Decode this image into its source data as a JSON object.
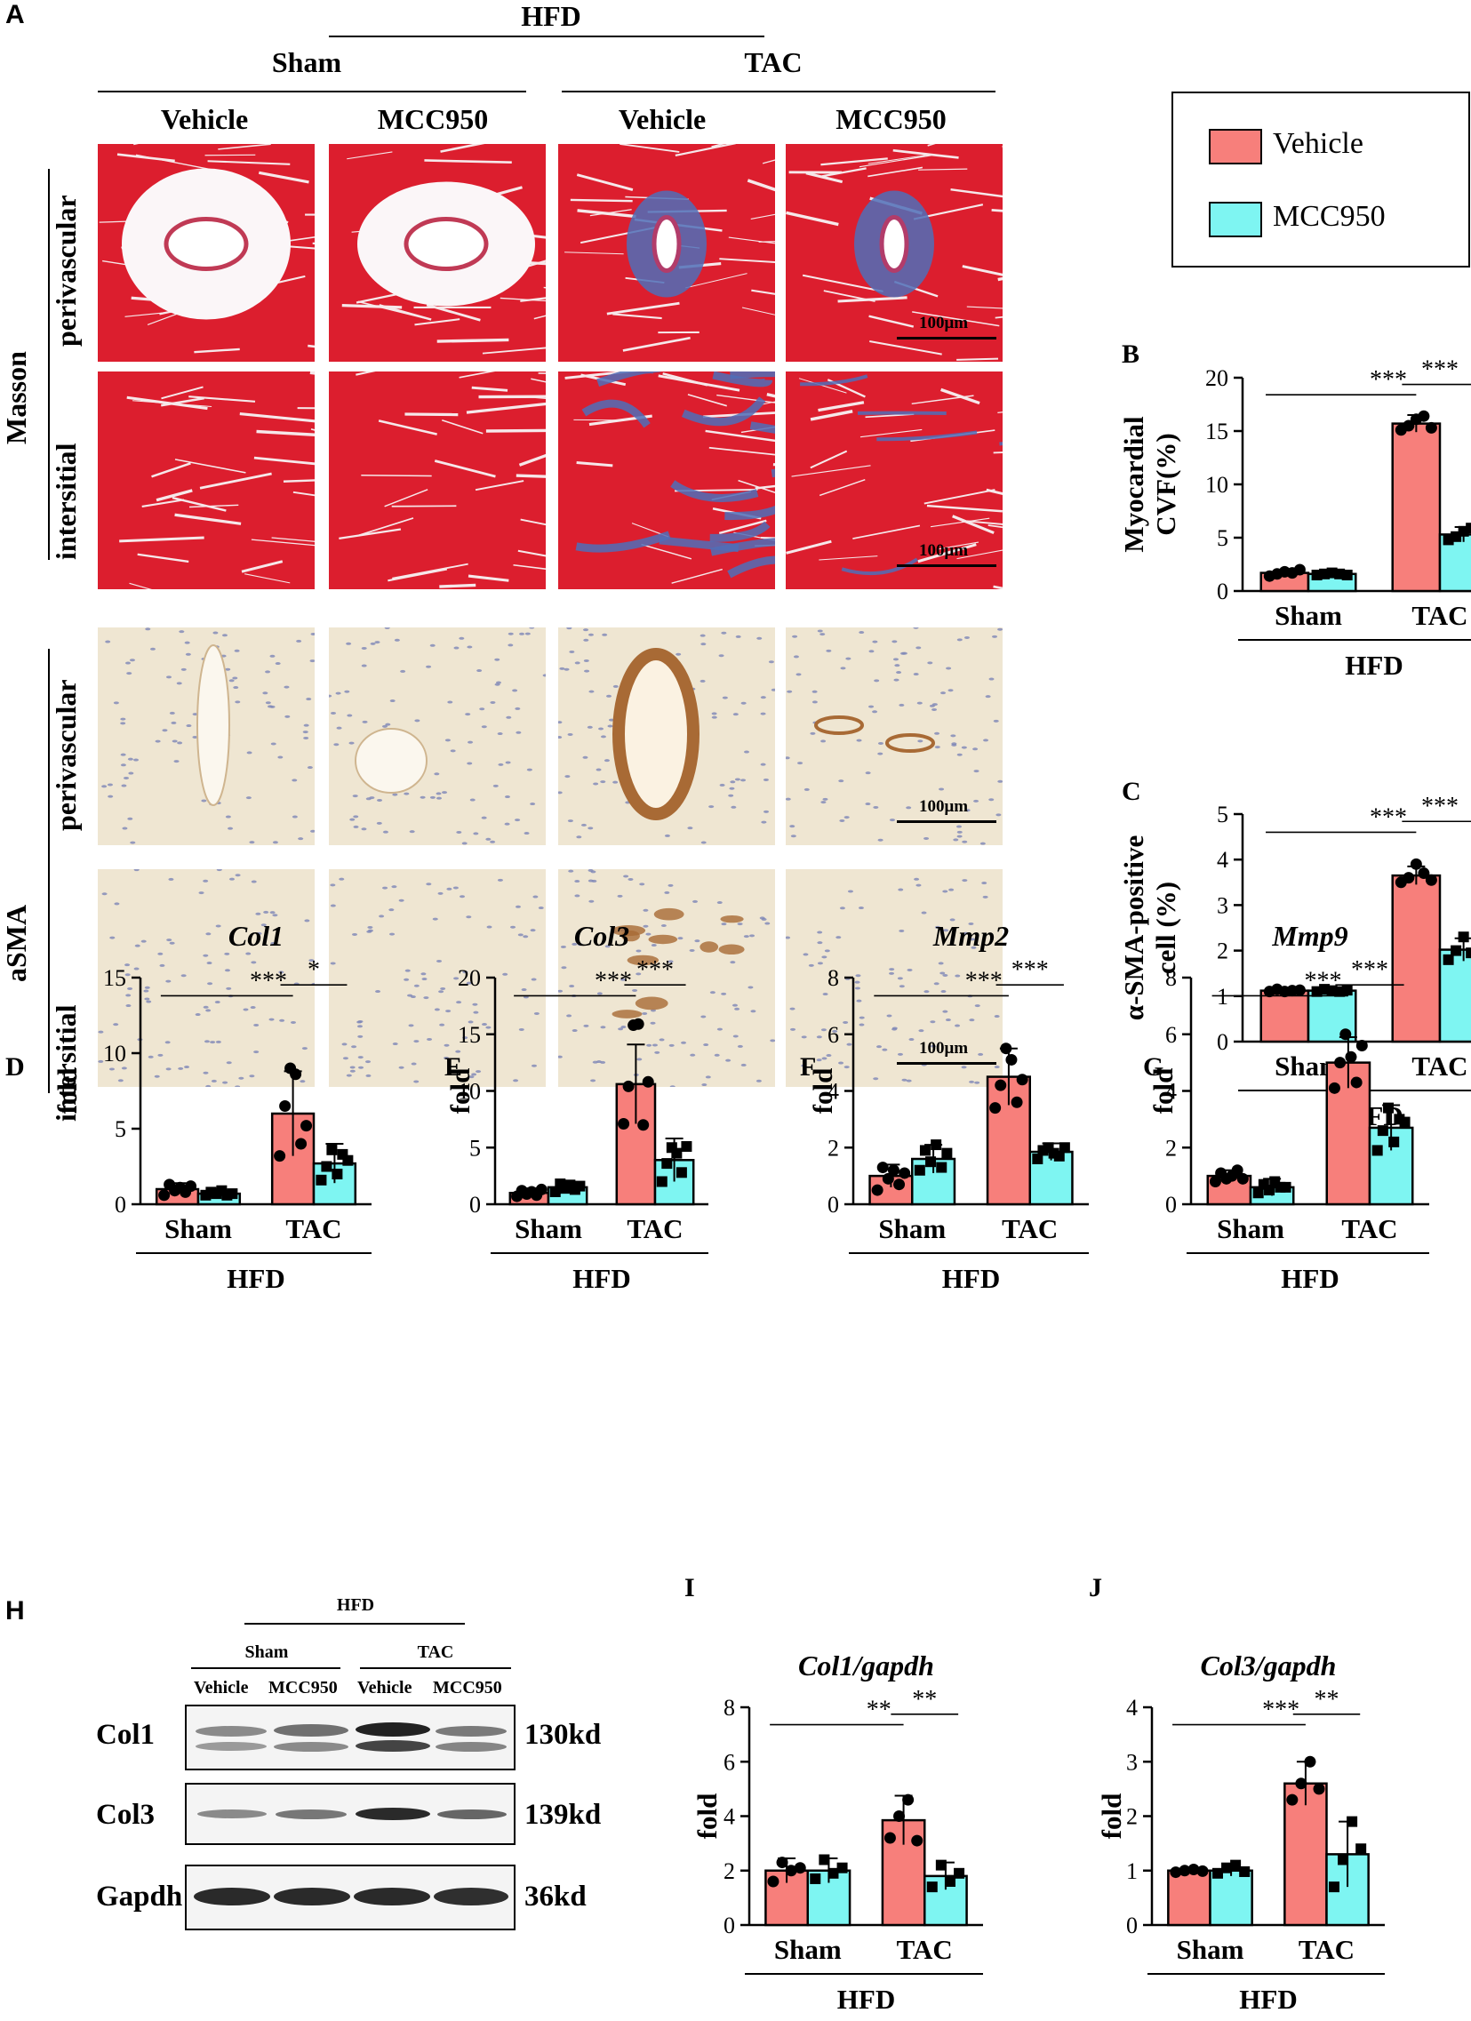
{
  "panel_letters": {
    "a": "A",
    "b": "B",
    "c": "C",
    "d": "D",
    "e": "E",
    "f": "F",
    "g": "G",
    "h": "H",
    "i": "I",
    "j": "J"
  },
  "panel_a": {
    "diet": "HFD",
    "groups": [
      "Sham",
      "TAC"
    ],
    "treatments": [
      "Vehicle",
      "MCC950",
      "Vehicle",
      "MCC950"
    ],
    "stains": [
      "Masson",
      "aSMA"
    ],
    "regions": [
      "perivascular",
      "intersitial"
    ],
    "scale_label": "100μm"
  },
  "legend": {
    "items": [
      {
        "label": "Vehicle",
        "color": "#f77f7b"
      },
      {
        "label": "MCC950",
        "color": "#7ef5f2"
      }
    ]
  },
  "panel_h": {
    "diet": "HFD",
    "groups": [
      "Sham",
      "TAC"
    ],
    "lanes": [
      "Vehicle",
      "MCC950",
      "Vehicle",
      "MCC950"
    ],
    "rows": [
      {
        "protein": "Col1",
        "size": "130kd"
      },
      {
        "protein": "Col3",
        "size": "139kd"
      },
      {
        "protein": "Gapdh",
        "size": "36kd"
      }
    ]
  },
  "colors": {
    "vehicle": "#f77f7b",
    "mcc950": "#7ef5f2",
    "masson_red": "#dc1e2e",
    "masson_blue": "#4f6fb8",
    "ihc_bg": "#efe6d2",
    "ihc_brown": "#a86a35",
    "ihc_nuc": "#7d86b6"
  },
  "chart_data": [
    {
      "panel": "B",
      "type": "bar",
      "title": "",
      "ylabel": "Myocardial CVF(%)",
      "ylim": [
        0,
        20
      ],
      "yticks": [
        0,
        5,
        10,
        15,
        20
      ],
      "categories": [
        "Sham",
        "TAC"
      ],
      "group_label": "HFD",
      "series": [
        {
          "name": "Vehicle",
          "values": [
            1.7,
            15.7
          ],
          "err": [
            0.3,
            0.8
          ],
          "points": [
            [
              1.4,
              1.6,
              1.8,
              1.7,
              2.0
            ],
            [
              15.1,
              15.5,
              16.1,
              16.4,
              15.3
            ]
          ]
        },
        {
          "name": "MCC950",
          "values": [
            1.6,
            5.3
          ],
          "err": [
            0.2,
            0.7
          ],
          "points": [
            [
              1.5,
              1.6,
              1.7,
              1.6,
              1.5
            ],
            [
              4.8,
              5.1,
              5.6,
              5.9,
              4.7
            ]
          ]
        }
      ],
      "significance": [
        {
          "from": "Sham-Vehicle",
          "to": "TAC-Vehicle",
          "label": "***"
        },
        {
          "from": "TAC-Vehicle",
          "to": "TAC-MCC950",
          "label": "***"
        }
      ]
    },
    {
      "panel": "C",
      "type": "bar",
      "title": "",
      "ylabel": "α-SMA-positive cell (%)",
      "ylim": [
        0,
        5
      ],
      "yticks": [
        0,
        1,
        2,
        3,
        4,
        5
      ],
      "categories": [
        "Sham",
        "TAC"
      ],
      "group_label": "HFD",
      "series": [
        {
          "name": "Vehicle",
          "values": [
            1.12,
            3.65
          ],
          "err": [
            0.05,
            0.2
          ],
          "points": [
            [
              1.1,
              1.15,
              1.1,
              1.12,
              1.13
            ],
            [
              3.5,
              3.6,
              3.9,
              3.7,
              3.55
            ]
          ]
        },
        {
          "name": "MCC950",
          "values": [
            1.12,
            2.02
          ],
          "err": [
            0.05,
            0.25
          ],
          "points": [
            [
              1.1,
              1.15,
              1.12,
              1.1,
              1.13
            ],
            [
              1.8,
              2.0,
              2.3,
              1.95,
              2.05
            ]
          ]
        }
      ],
      "significance": [
        {
          "from": "Sham-Vehicle",
          "to": "TAC-Vehicle",
          "label": "***"
        },
        {
          "from": "TAC-Vehicle",
          "to": "TAC-MCC950",
          "label": "***"
        }
      ]
    },
    {
      "panel": "D",
      "type": "bar",
      "title": "Col1",
      "ylabel": "fold",
      "ylim": [
        0,
        15
      ],
      "yticks": [
        0,
        5,
        10,
        15
      ],
      "categories": [
        "Sham",
        "TAC"
      ],
      "group_label": "HFD",
      "series": [
        {
          "name": "Vehicle",
          "values": [
            1.0,
            6.0
          ],
          "err": [
            0.4,
            2.8
          ],
          "points": [
            [
              0.6,
              1.3,
              0.9,
              1.1,
              0.8,
              1.2
            ],
            [
              3.2,
              6.5,
              9.0,
              8.6,
              4.0,
              5.2
            ]
          ]
        },
        {
          "name": "MCC950",
          "values": [
            0.7,
            2.7
          ],
          "err": [
            0.2,
            1.3
          ],
          "points": [
            [
              0.6,
              0.8,
              0.7,
              0.9,
              0.6,
              0.7
            ],
            [
              1.6,
              2.5,
              3.6,
              2.0,
              3.3,
              2.9
            ]
          ]
        }
      ],
      "significance": [
        {
          "from": "Sham-Vehicle",
          "to": "TAC-Vehicle",
          "label": "***"
        },
        {
          "from": "TAC-Vehicle",
          "to": "TAC-MCC950",
          "label": "*"
        }
      ]
    },
    {
      "panel": "E",
      "type": "bar",
      "title": "Col3",
      "ylabel": "fold",
      "ylim": [
        0,
        20
      ],
      "yticks": [
        0,
        5,
        10,
        15,
        20
      ],
      "categories": [
        "Sham",
        "TAC"
      ],
      "group_label": "HFD",
      "series": [
        {
          "name": "Vehicle",
          "values": [
            1.0,
            10.6
          ],
          "err": [
            0.4,
            3.5
          ],
          "points": [
            [
              0.7,
              1.2,
              0.9,
              1.1,
              0.8,
              1.3
            ],
            [
              7.1,
              10.4,
              15.8,
              15.9,
              7.0,
              10.8
            ]
          ]
        },
        {
          "name": "MCC950",
          "values": [
            1.5,
            3.9
          ],
          "err": [
            0.4,
            1.9
          ],
          "points": [
            [
              1.1,
              1.8,
              1.4,
              1.7,
              1.3,
              1.6
            ],
            [
              2.0,
              3.6,
              5.0,
              4.5,
              2.8,
              5.1
            ]
          ]
        }
      ],
      "significance": [
        {
          "from": "Sham-Vehicle",
          "to": "TAC-Vehicle",
          "label": "***"
        },
        {
          "from": "TAC-Vehicle",
          "to": "TAC-MCC950",
          "label": "***"
        }
      ]
    },
    {
      "panel": "F",
      "type": "bar",
      "title": "Mmp2",
      "ylabel": "fold",
      "ylim": [
        0,
        8
      ],
      "yticks": [
        0,
        2,
        4,
        6,
        8
      ],
      "categories": [
        "Sham",
        "TAC"
      ],
      "group_label": "HFD",
      "series": [
        {
          "name": "Vehicle",
          "values": [
            1.0,
            4.5
          ],
          "err": [
            0.4,
            1.0
          ],
          "points": [
            [
              0.5,
              1.3,
              0.9,
              1.2,
              0.7,
              1.1
            ],
            [
              3.4,
              4.2,
              5.5,
              5.1,
              3.6,
              4.4
            ]
          ]
        },
        {
          "name": "MCC950",
          "values": [
            1.6,
            1.85
          ],
          "err": [
            0.5,
            0.3
          ],
          "points": [
            [
              1.2,
              1.9,
              1.5,
              2.1,
              1.3,
              1.8
            ],
            [
              1.6,
              1.9,
              2.0,
              1.8,
              1.7,
              2.0
            ]
          ]
        }
      ],
      "significance": [
        {
          "from": "Sham-Vehicle",
          "to": "TAC-Vehicle",
          "label": "***"
        },
        {
          "from": "TAC-Vehicle",
          "to": "TAC-MCC950",
          "label": "***"
        }
      ]
    },
    {
      "panel": "G",
      "type": "bar",
      "title": "Mmp9",
      "ylabel": "fold",
      "ylim": [
        0,
        8
      ],
      "yticks": [
        0,
        2,
        4,
        6,
        8
      ],
      "categories": [
        "Sham",
        "TAC"
      ],
      "group_label": "HFD",
      "series": [
        {
          "name": "Vehicle",
          "values": [
            1.0,
            5.0
          ],
          "err": [
            0.2,
            0.9
          ],
          "points": [
            [
              0.8,
              1.1,
              0.9,
              1.0,
              1.2,
              0.9
            ],
            [
              4.1,
              5.0,
              6.0,
              5.2,
              4.3,
              5.6
            ]
          ]
        },
        {
          "name": "MCC950",
          "values": [
            0.6,
            2.7
          ],
          "err": [
            0.3,
            0.8
          ],
          "points": [
            [
              0.4,
              0.7,
              0.5,
              0.8,
              0.6,
              0.6
            ],
            [
              1.9,
              2.6,
              3.4,
              2.2,
              3.0,
              2.9
            ]
          ]
        }
      ],
      "significance": [
        {
          "from": "Sham-Vehicle",
          "to": "TAC-Vehicle",
          "label": "***"
        },
        {
          "from": "TAC-Vehicle",
          "to": "TAC-MCC950",
          "label": "***"
        }
      ]
    },
    {
      "panel": "I",
      "type": "bar",
      "title": "Col1/gapdh",
      "ylabel": "fold",
      "ylim": [
        0,
        8
      ],
      "yticks": [
        0,
        2,
        4,
        6,
        8
      ],
      "categories": [
        "Sham",
        "TAC"
      ],
      "group_label": "HFD",
      "series": [
        {
          "name": "Vehicle",
          "values": [
            2.0,
            3.85
          ],
          "err": [
            0.45,
            0.9
          ],
          "points": [
            [
              1.6,
              2.3,
              2.0,
              2.1
            ],
            [
              3.2,
              4.0,
              4.6,
              3.1
            ]
          ]
        },
        {
          "name": "MCC950",
          "values": [
            2.0,
            1.8
          ],
          "err": [
            0.45,
            0.5
          ],
          "points": [
            [
              1.7,
              2.4,
              1.9,
              2.1
            ],
            [
              1.4,
              2.2,
              1.6,
              1.9
            ]
          ]
        }
      ],
      "significance": [
        {
          "from": "Sham-Vehicle",
          "to": "TAC-Vehicle",
          "label": "**"
        },
        {
          "from": "TAC-Vehicle",
          "to": "TAC-MCC950",
          "label": "**"
        }
      ]
    },
    {
      "panel": "J",
      "type": "bar",
      "title": "Col3/gapdh",
      "ylabel": "fold",
      "ylim": [
        0,
        4
      ],
      "yticks": [
        0,
        1,
        2,
        3,
        4
      ],
      "categories": [
        "Sham",
        "TAC"
      ],
      "group_label": "HFD",
      "series": [
        {
          "name": "Vehicle",
          "values": [
            1.0,
            2.6
          ],
          "err": [
            0.03,
            0.4
          ],
          "points": [
            [
              0.97,
              1.0,
              1.02,
              0.99
            ],
            [
              2.3,
              2.6,
              3.0,
              2.5
            ]
          ]
        },
        {
          "name": "MCC950",
          "values": [
            1.0,
            1.3
          ],
          "err": [
            0.1,
            0.6
          ],
          "points": [
            [
              0.95,
              1.05,
              1.1,
              0.98
            ],
            [
              0.7,
              1.2,
              1.9,
              1.4
            ]
          ]
        }
      ],
      "significance": [
        {
          "from": "Sham-Vehicle",
          "to": "TAC-Vehicle",
          "label": "***"
        },
        {
          "from": "TAC-Vehicle",
          "to": "TAC-MCC950",
          "label": "**"
        }
      ]
    }
  ]
}
